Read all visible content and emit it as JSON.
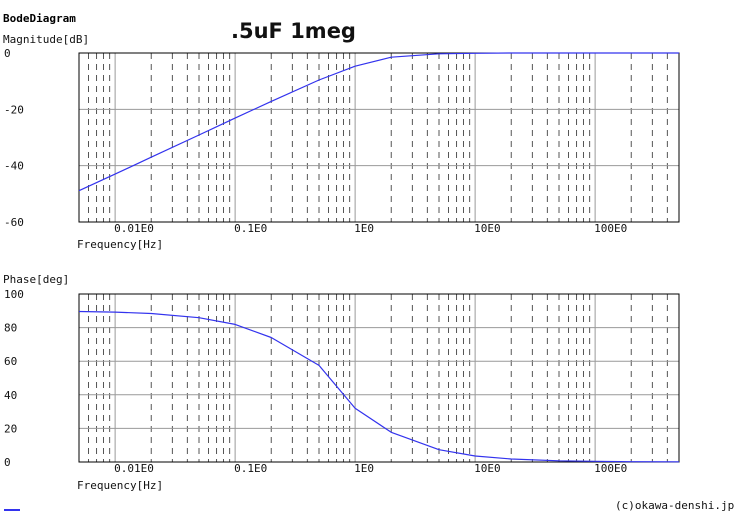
{
  "header": "BodeDiagram",
  "title": ".5uF 1meg",
  "copyright": "(c)okawa-denshi.jp",
  "colors": {
    "curve": "#3333ee",
    "grid_major": "#999999",
    "grid_minor": "#555555",
    "axis": "#000000",
    "background": "#ffffff"
  },
  "chart_data": [
    {
      "type": "line",
      "name": "magnitude",
      "ylabel": "Magnitude[dB]",
      "xlabel": "Frequency[Hz]",
      "x_scale": "log",
      "xlim": [
        0.005,
        500
      ],
      "ylim": [
        -60,
        0
      ],
      "yticks": [
        0,
        -20,
        -40,
        -60
      ],
      "ytick_labels": [
        "0",
        "-20",
        "-40",
        "-60"
      ],
      "xticks": [
        0.01,
        0.1,
        1,
        10,
        100
      ],
      "xtick_labels": [
        "0.01E0",
        "0.1E0",
        "1E0",
        "10E0",
        "100E0"
      ],
      "grid": true,
      "x": [
        0.005,
        0.01,
        0.02,
        0.05,
        0.1,
        0.2,
        0.5,
        1,
        2,
        5,
        10,
        20,
        50,
        100,
        200,
        500
      ],
      "y": [
        -48.9,
        -43.0,
        -37.0,
        -29.1,
        -23.1,
        -17.2,
        -9.6,
        -4.7,
        -1.5,
        -0.3,
        -0.1,
        0,
        0,
        0,
        0,
        0
      ]
    },
    {
      "type": "line",
      "name": "phase",
      "ylabel": "Phase[deg]",
      "xlabel": "Frequency[Hz]",
      "x_scale": "log",
      "xlim": [
        0.005,
        500
      ],
      "ylim": [
        0,
        100
      ],
      "yticks": [
        100,
        80,
        60,
        40,
        20,
        0
      ],
      "ytick_labels": [
        "100",
        "80",
        "60",
        "40",
        "20",
        "0"
      ],
      "xticks": [
        0.01,
        0.1,
        1,
        10,
        100
      ],
      "xtick_labels": [
        "0.01E0",
        "0.1E0",
        "1E0",
        "10E0",
        "100E0"
      ],
      "grid": true,
      "x": [
        0.005,
        0.01,
        0.02,
        0.05,
        0.1,
        0.2,
        0.5,
        1,
        2,
        5,
        10,
        20,
        50,
        100,
        200,
        500
      ],
      "y": [
        89.6,
        89.2,
        88.4,
        85.9,
        81.9,
        74.1,
        57.5,
        32.0,
        17.7,
        7.3,
        3.6,
        1.8,
        0.7,
        0.4,
        0.2,
        0.1
      ]
    }
  ]
}
